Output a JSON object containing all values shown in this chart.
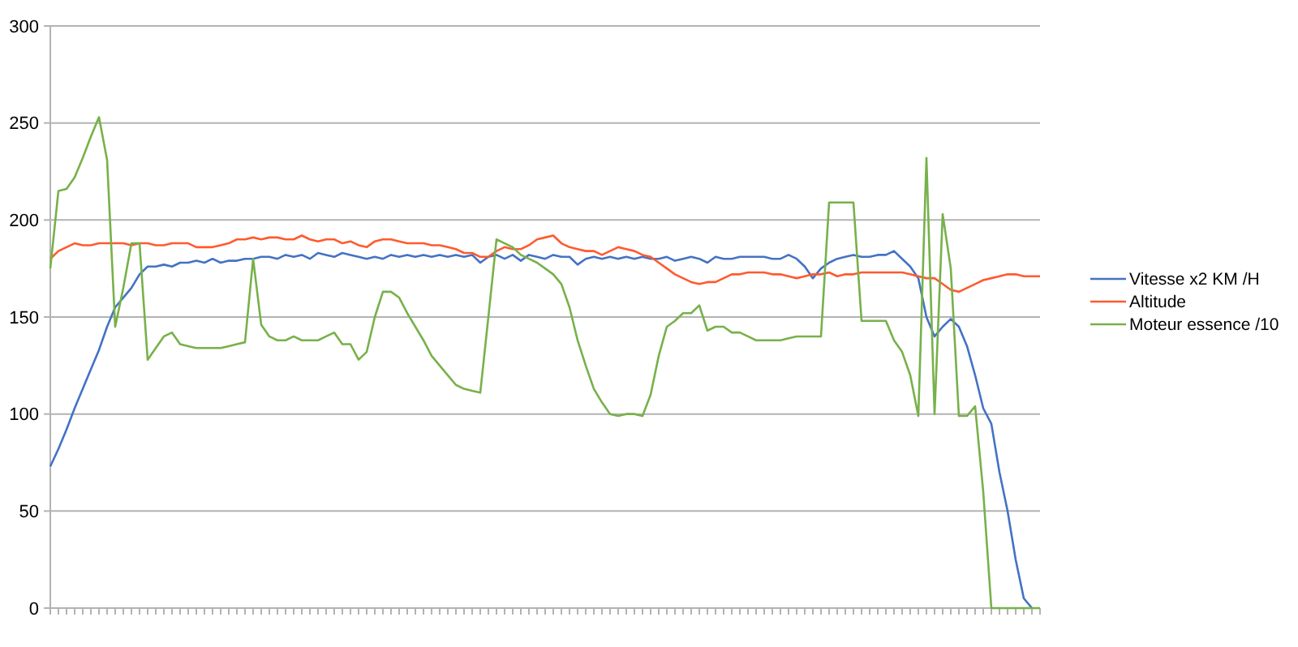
{
  "chart_data": {
    "type": "line",
    "categories": [
      null,
      null,
      null,
      null,
      null,
      null,
      null,
      null,
      null,
      null,
      null,
      null,
      null,
      null,
      null,
      null,
      null,
      null,
      null,
      null,
      null,
      null,
      null,
      null,
      null,
      null,
      null,
      null,
      null,
      null,
      null,
      null,
      null,
      null,
      null,
      null,
      null,
      null,
      null,
      null,
      null,
      null,
      null,
      null,
      null,
      null,
      null,
      null,
      null,
      null,
      null,
      null,
      null,
      null,
      null,
      null,
      null,
      null,
      null,
      null,
      null,
      null,
      null,
      null,
      null,
      null,
      null,
      null,
      null,
      null,
      null,
      null,
      null,
      null,
      null,
      null,
      null,
      null,
      null,
      null,
      null,
      null,
      null,
      null,
      null,
      null,
      null,
      null,
      null,
      null,
      null,
      null,
      null,
      null,
      null,
      null,
      null,
      null,
      null,
      null,
      null,
      null,
      null,
      null,
      null,
      null,
      null,
      null,
      null,
      null,
      null,
      null,
      null,
      null,
      null,
      null,
      null,
      null,
      null,
      null,
      null,
      null,
      null
    ],
    "ylim": [
      0,
      300
    ],
    "yticks": [
      0,
      50,
      100,
      150,
      200,
      250,
      300
    ],
    "grid": "y",
    "legend": "right",
    "tick_labels": "y",
    "series": [
      {
        "name": "Vitesse x2 KM /H",
        "color": "#4472c4",
        "values": [
          73,
          82,
          92,
          103,
          113,
          123,
          133,
          145,
          155,
          160,
          165,
          172,
          176,
          176,
          177,
          176,
          178,
          178,
          179,
          178,
          180,
          178,
          179,
          179,
          180,
          180,
          181,
          181,
          180,
          182,
          181,
          182,
          180,
          183,
          182,
          181,
          183,
          182,
          181,
          180,
          181,
          180,
          182,
          181,
          182,
          181,
          182,
          181,
          182,
          181,
          182,
          181,
          182,
          178,
          181,
          182,
          180,
          182,
          179,
          182,
          181,
          180,
          182,
          181,
          181,
          177,
          180,
          181,
          180,
          181,
          180,
          181,
          180,
          181,
          180,
          180,
          181,
          179,
          180,
          181,
          180,
          178,
          181,
          180,
          180,
          181,
          181,
          181,
          181,
          180,
          180,
          182,
          180,
          176,
          170,
          175,
          178,
          180,
          181,
          182,
          181,
          181,
          182,
          182,
          184,
          180,
          176,
          170,
          150,
          140,
          145,
          149,
          145,
          135,
          120,
          103,
          95,
          70,
          50,
          25,
          5,
          0,
          null
        ]
      },
      {
        "name": "Altitude",
        "color": "#ff5a2e",
        "values": [
          180,
          184,
          186,
          188,
          187,
          187,
          188,
          188,
          188,
          188,
          187,
          188,
          188,
          187,
          187,
          188,
          188,
          188,
          186,
          186,
          186,
          187,
          188,
          190,
          190,
          191,
          190,
          191,
          191,
          190,
          190,
          192,
          190,
          189,
          190,
          190,
          188,
          189,
          187,
          186,
          189,
          190,
          190,
          189,
          188,
          188,
          188,
          187,
          187,
          186,
          185,
          183,
          183,
          181,
          181,
          184,
          186,
          185,
          185,
          187,
          190,
          191,
          192,
          188,
          186,
          185,
          184,
          184,
          182,
          184,
          186,
          185,
          184,
          182,
          181,
          178,
          175,
          172,
          170,
          168,
          167,
          168,
          168,
          170,
          172,
          172,
          173,
          173,
          173,
          172,
          172,
          171,
          170,
          171,
          172,
          172,
          173,
          171,
          172,
          172,
          173,
          173,
          173,
          173,
          173,
          173,
          172,
          171,
          170,
          170,
          167,
          164,
          163,
          165,
          167,
          169,
          170,
          171,
          172,
          172,
          171,
          171,
          171
        ]
      },
      {
        "name": "Moteur essence /10",
        "color": "#77b14a",
        "values": [
          175,
          215,
          216,
          222,
          232,
          243,
          253,
          231,
          145,
          165,
          188,
          188,
          128,
          134,
          140,
          142,
          136,
          135,
          134,
          134,
          134,
          134,
          135,
          136,
          137,
          180,
          146,
          140,
          138,
          138,
          140,
          138,
          138,
          138,
          140,
          142,
          136,
          136,
          128,
          132,
          150,
          163,
          163,
          160,
          152,
          145,
          138,
          130,
          125,
          120,
          115,
          113,
          112,
          111,
          150,
          190,
          188,
          186,
          182,
          180,
          178,
          175,
          172,
          167,
          155,
          138,
          125,
          113,
          106,
          100,
          99,
          100,
          100,
          99,
          110,
          130,
          145,
          148,
          152,
          152,
          156,
          143,
          145,
          145,
          142,
          142,
          140,
          138,
          138,
          138,
          138,
          139,
          140,
          140,
          140,
          140,
          209,
          209,
          209,
          209,
          148,
          148,
          148,
          148,
          138,
          132,
          120,
          99,
          232,
          100,
          203,
          175,
          99,
          99,
          104,
          60,
          0,
          0,
          0,
          0,
          0,
          0,
          0
        ]
      }
    ]
  }
}
